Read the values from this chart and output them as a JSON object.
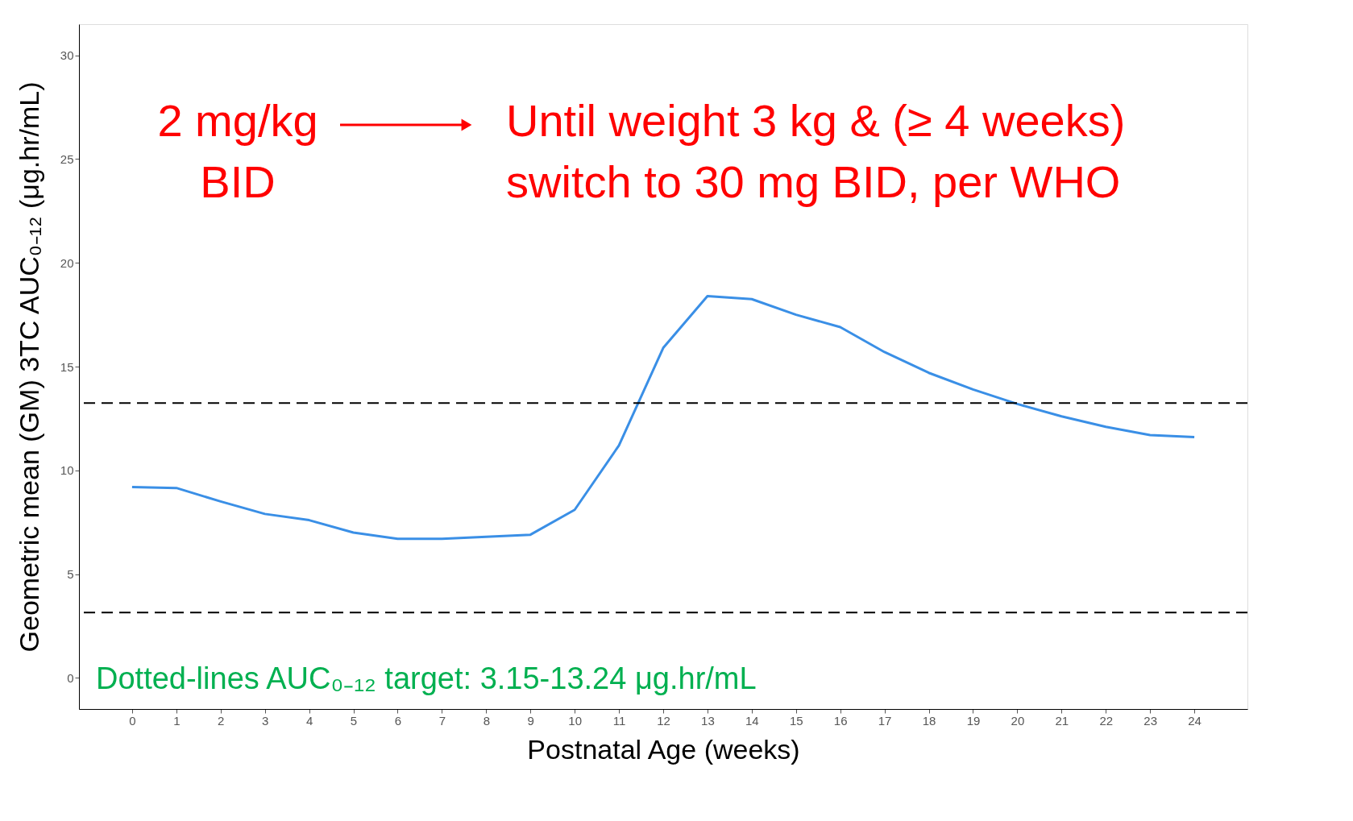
{
  "chart_data": {
    "type": "line",
    "xlabel": "Postnatal Age (weeks)",
    "ylabel": "Geometric mean (GM) 3TC AUC₀₋₁₂ (μg.hr/mL)",
    "x": [
      0,
      1,
      2,
      3,
      4,
      5,
      6,
      7,
      8,
      9,
      10,
      11,
      12,
      13,
      14,
      15,
      16,
      17,
      18,
      19,
      20,
      21,
      22,
      23,
      24
    ],
    "series": [
      {
        "color": "#3a8fe6",
        "values": [
          9.2,
          9.15,
          8.5,
          7.9,
          7.6,
          7.0,
          6.7,
          6.7,
          6.8,
          6.9,
          8.1,
          11.2,
          15.9,
          18.4,
          18.25,
          17.5,
          16.9,
          15.7,
          14.7,
          13.9,
          13.2,
          12.6,
          12.1,
          11.7,
          11.6
        ]
      }
    ],
    "xlim": [
      -1.2,
      25.2
    ],
    "ylim": [
      -1.5,
      31.5
    ],
    "xticks": [
      0,
      1,
      2,
      3,
      4,
      5,
      6,
      7,
      8,
      9,
      10,
      11,
      12,
      13,
      14,
      15,
      16,
      17,
      18,
      19,
      20,
      21,
      22,
      23,
      24
    ],
    "yticks": [
      0,
      5,
      10,
      15,
      20,
      25,
      30
    ],
    "ref_lines": [
      {
        "axis": "y",
        "value": 13.24,
        "color": "#000000",
        "line_style": "dashed"
      },
      {
        "axis": "y",
        "value": 3.15,
        "color": "#000000",
        "line_style": "dashed"
      }
    ],
    "annotations": [
      "2 mg/kg\nBID",
      "Until weight 3 kg & (≥ 4 weeks)\nswitch to 30 mg BID, per WHO",
      "Dotted-lines AUC₀₋₁₂ target: 3.15-13.24 μg.hr/mL"
    ],
    "grid": false,
    "marker": "none",
    "line_style": "solid"
  }
}
